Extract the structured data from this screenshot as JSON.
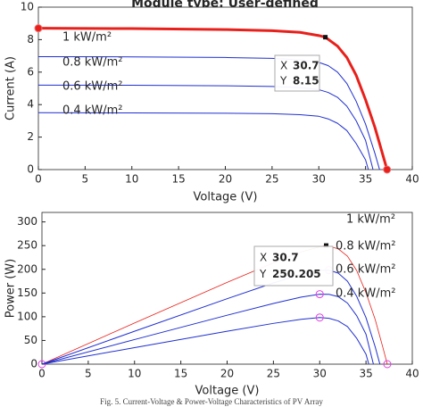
{
  "chart_data": [
    {
      "type": "line",
      "title": "Module type: User-defined",
      "xlabel": "Voltage (V)",
      "ylabel": "Current (A)",
      "xlim": [
        0,
        40
      ],
      "xticks": [
        0,
        5,
        10,
        15,
        20,
        25,
        30,
        35,
        40
      ],
      "ylim": [
        0,
        10
      ],
      "yticks": [
        0,
        2,
        4,
        6,
        8,
        10
      ],
      "end_markers": true,
      "series": [
        {
          "name": "1 kW/m²",
          "color": "#e8201b",
          "width": 3,
          "x": [
            0,
            10,
            20,
            25,
            28,
            30,
            30.7,
            32,
            33,
            34,
            35,
            36,
            36.8,
            37.3
          ],
          "values": [
            8.7,
            8.68,
            8.62,
            8.55,
            8.45,
            8.25,
            8.15,
            7.6,
            6.9,
            5.8,
            4.3,
            2.6,
            1.0,
            0
          ]
        },
        {
          "name": "0.8 kW/m²",
          "color": "#1f2fd0",
          "width": 1,
          "x": [
            0,
            10,
            20,
            25,
            28,
            30,
            31,
            32,
            33,
            34,
            35,
            36,
            36.5
          ],
          "values": [
            6.95,
            6.94,
            6.9,
            6.85,
            6.75,
            6.6,
            6.4,
            6.0,
            5.3,
            4.2,
            2.8,
            1.0,
            0
          ]
        },
        {
          "name": "0.6 kW/m²",
          "color": "#1f2fd0",
          "width": 1,
          "x": [
            0,
            10,
            20,
            25,
            28,
            30,
            31,
            32,
            33,
            34,
            35,
            35.8
          ],
          "values": [
            5.2,
            5.19,
            5.16,
            5.12,
            5.05,
            4.92,
            4.75,
            4.45,
            3.9,
            3.0,
            1.8,
            0
          ]
        },
        {
          "name": "0.4 kW/m²",
          "color": "#1f2fd0",
          "width": 1,
          "x": [
            0,
            10,
            20,
            25,
            28,
            30,
            31,
            32,
            33,
            34,
            35,
            35.3
          ],
          "values": [
            3.5,
            3.49,
            3.47,
            3.44,
            3.38,
            3.28,
            3.12,
            2.85,
            2.4,
            1.6,
            0.6,
            0
          ]
        }
      ],
      "datatip": {
        "x_label": "X",
        "x": 30.7,
        "y_label": "Y",
        "y": 8.15
      }
    },
    {
      "type": "line",
      "xlabel": "Voltage (V)",
      "ylabel": "Power (W)",
      "xlim": [
        0,
        40
      ],
      "xticks": [
        0,
        5,
        10,
        15,
        20,
        25,
        30,
        35,
        40
      ],
      "ylim": [
        0,
        320
      ],
      "yticks": [
        0,
        50,
        100,
        150,
        200,
        250,
        300
      ],
      "peak_markers": true,
      "series": [
        {
          "name": "1 kW/m²",
          "color": "#e8201b",
          "width": 0.8,
          "x": [
            0,
            10,
            20,
            25,
            28,
            30,
            30.7,
            32,
            33,
            34,
            35,
            36,
            36.8,
            37.3
          ],
          "values": [
            0,
            86.8,
            172.4,
            213.75,
            236.6,
            247.5,
            250.205,
            243.2,
            227.7,
            197.2,
            150.5,
            93.6,
            36.8,
            0
          ]
        },
        {
          "name": "0.8 kW/m²",
          "color": "#1f2fd0",
          "width": 1,
          "x": [
            0,
            10,
            20,
            25,
            28,
            30,
            31,
            32,
            33,
            34,
            35,
            36,
            36.5
          ],
          "values": [
            0,
            69.4,
            138,
            171.25,
            189,
            198,
            198.4,
            192,
            174.9,
            142.8,
            98,
            36,
            0
          ]
        },
        {
          "name": "0.6 kW/m²",
          "color": "#1f2fd0",
          "width": 1,
          "x": [
            0,
            10,
            20,
            25,
            28,
            30,
            31,
            32,
            33,
            34,
            35,
            35.8
          ],
          "values": [
            0,
            51.9,
            103.2,
            128,
            141.4,
            147.6,
            147.25,
            142.4,
            128.7,
            102,
            63,
            0
          ]
        },
        {
          "name": "0.4 kW/m²",
          "color": "#1f2fd0",
          "width": 1,
          "x": [
            0,
            10,
            20,
            25,
            28,
            30,
            31,
            32,
            33,
            34,
            35,
            35.3
          ],
          "values": [
            0,
            34.9,
            69.4,
            86,
            94.6,
            98.4,
            96.7,
            91.2,
            79.2,
            54.4,
            21,
            0
          ]
        }
      ],
      "datatip": {
        "x_label": "X",
        "x": 30.7,
        "y_label": "Y",
        "y": 250.205
      }
    }
  ],
  "caption": "Fig. 5. Current-Voltage & Power-Voltage Characteristics of PV Array"
}
